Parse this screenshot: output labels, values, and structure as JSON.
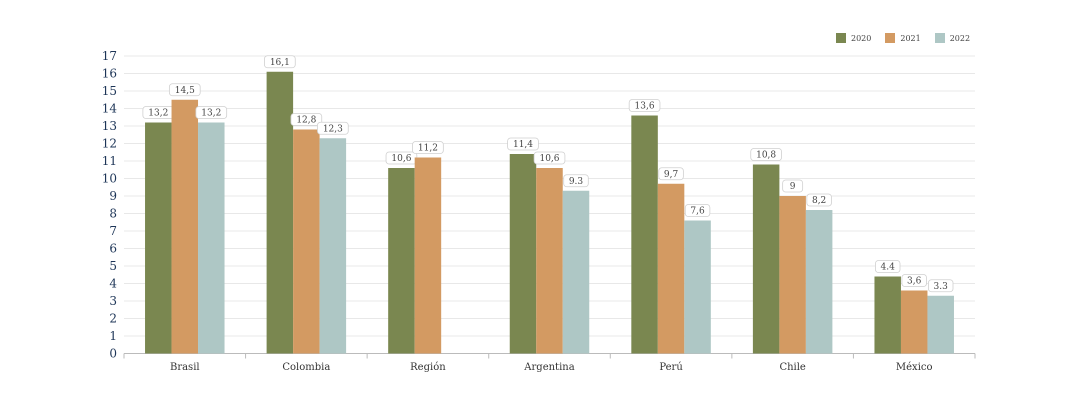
{
  "chart_data": {
    "type": "bar",
    "categories": [
      "Brasil",
      "Colombia",
      "Región",
      "Argentina",
      "Perú",
      "Chile",
      "México"
    ],
    "series": [
      {
        "name": "2020",
        "color": "#7a8750",
        "values": [
          13.2,
          16.1,
          10.6,
          11.4,
          13.6,
          10.8,
          4.4
        ],
        "labels": [
          "13,2",
          "16,1",
          "10,6",
          "11,4",
          "13,6",
          "10,8",
          "4.4"
        ]
      },
      {
        "name": "2021",
        "color": "#d39a62",
        "values": [
          14.5,
          12.8,
          11.2,
          10.6,
          9.7,
          9,
          3.6
        ],
        "labels": [
          "14,5",
          "12,8",
          "11,2",
          "10,6",
          "9,7",
          "9",
          "3,6"
        ]
      },
      {
        "name": "2022",
        "color": "#aec7c5",
        "values": [
          13.2,
          12.3,
          null,
          9.3,
          7.6,
          8.2,
          3.3
        ],
        "labels": [
          "13,2",
          "12,3",
          "",
          "9.3",
          "7,6",
          "8,2",
          "3.3"
        ]
      }
    ],
    "y_ticks": [
      "0",
      "1",
      "2",
      "3",
      "4",
      "5",
      "6",
      "7",
      "8",
      "9",
      "10",
      "11",
      "12",
      "13",
      "14",
      "15",
      "16",
      "17"
    ],
    "ylim": [
      0,
      17
    ],
    "grid": true,
    "legend_position": "top-right"
  }
}
